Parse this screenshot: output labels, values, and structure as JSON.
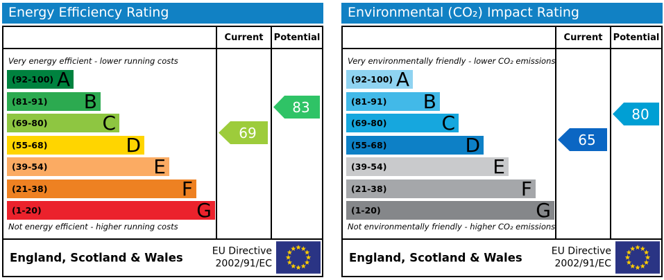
{
  "chart_data": [
    {
      "type": "epc-rating-bar",
      "title": "Energy Efficiency Rating",
      "header_color": "#1181c4",
      "columns": [
        "Current",
        "Potential"
      ],
      "top_caption": "Very energy efficient - lower running costs",
      "bottom_caption": "Not energy efficient - higher running costs",
      "bands": [
        {
          "letter": "A",
          "range_label": "(92-100)",
          "min": 92,
          "max": 100,
          "color": "#00823f",
          "width_frac": 0.32
        },
        {
          "letter": "B",
          "range_label": "(81-91)",
          "min": 81,
          "max": 91,
          "color": "#2caa50",
          "width_frac": 0.45
        },
        {
          "letter": "C",
          "range_label": "(69-80)",
          "min": 69,
          "max": 80,
          "color": "#8ec641",
          "width_frac": 0.54
        },
        {
          "letter": "D",
          "range_label": "(55-68)",
          "min": 55,
          "max": 68,
          "color": "#ffd500",
          "width_frac": 0.66
        },
        {
          "letter": "E",
          "range_label": "(39-54)",
          "min": 39,
          "max": 54,
          "color": "#fbab63",
          "width_frac": 0.78
        },
        {
          "letter": "F",
          "range_label": "(21-38)",
          "min": 21,
          "max": 38,
          "color": "#ee8122",
          "width_frac": 0.91
        },
        {
          "letter": "G",
          "range_label": "(1-20)",
          "min": 1,
          "max": 20,
          "color": "#eb222c",
          "width_frac": 1.0
        }
      ],
      "current": {
        "value": 69,
        "color": "#9dcc3b"
      },
      "potential": {
        "value": 83,
        "color": "#2fc366"
      },
      "footer_region": "England, Scotland & Wales",
      "footer_directive": [
        "EU Directive",
        "2002/91/EC"
      ],
      "flag_colors": {
        "field": "#2a3484",
        "stars": "#ffcc00"
      }
    },
    {
      "type": "epc-rating-bar",
      "title": "Environmental (CO₂) Impact Rating",
      "header_color": "#1181c4",
      "columns": [
        "Current",
        "Potential"
      ],
      "top_caption": "Very environmentally friendly - lower CO₂ emissions",
      "bottom_caption": "Not environmentally friendly - higher CO₂ emissions",
      "bands": [
        {
          "letter": "A",
          "range_label": "(92-100)",
          "min": 92,
          "max": 100,
          "color": "#8fd3f1",
          "width_frac": 0.32
        },
        {
          "letter": "B",
          "range_label": "(81-91)",
          "min": 81,
          "max": 91,
          "color": "#42b9e8",
          "width_frac": 0.45
        },
        {
          "letter": "C",
          "range_label": "(69-80)",
          "min": 69,
          "max": 80,
          "color": "#16a7de",
          "width_frac": 0.54
        },
        {
          "letter": "D",
          "range_label": "(55-68)",
          "min": 55,
          "max": 68,
          "color": "#0d80c6",
          "width_frac": 0.66
        },
        {
          "letter": "E",
          "range_label": "(39-54)",
          "min": 39,
          "max": 54,
          "color": "#c9cacc",
          "width_frac": 0.78
        },
        {
          "letter": "F",
          "range_label": "(21-38)",
          "min": 21,
          "max": 38,
          "color": "#a5a7aa",
          "width_frac": 0.91
        },
        {
          "letter": "G",
          "range_label": "(1-20)",
          "min": 1,
          "max": 20,
          "color": "#85878a",
          "width_frac": 1.0
        }
      ],
      "current": {
        "value": 65,
        "color": "#0b66c3"
      },
      "potential": {
        "value": 80,
        "color": "#009fd4"
      },
      "footer_region": "England, Scotland & Wales",
      "footer_directive": [
        "EU Directive",
        "2002/91/EC"
      ],
      "flag_colors": {
        "field": "#2a3484",
        "stars": "#ffcc00"
      }
    }
  ]
}
